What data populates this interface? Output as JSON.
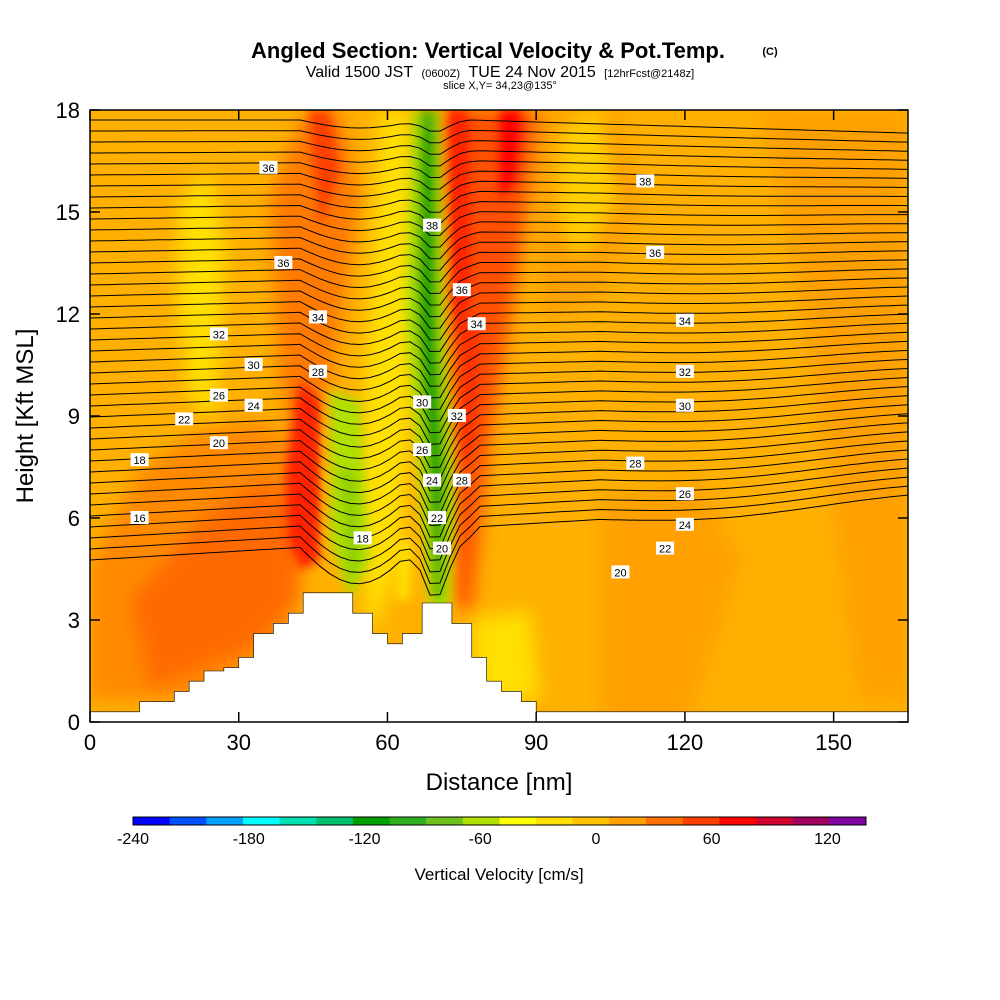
{
  "chart_data": {
    "type": "heatmap",
    "title": "Angled Section: Vertical Velocity & Pot.Temp.",
    "title_units": "(C)",
    "subtitle": {
      "prefix": "Valid 1500 JST",
      "utc": "(0600Z)",
      "date": "TUE 24 Nov 2015",
      "forecast": "[12hrFcst@2148z]"
    },
    "slice_label": "slice X,Y= 34,23@135°",
    "xlabel": "Distance [nm]",
    "ylabel": "Height [Kft MSL]",
    "xlim": [
      0,
      165
    ],
    "ylim": [
      0,
      18
    ],
    "x_ticks": [
      0,
      30,
      60,
      90,
      120,
      150
    ],
    "y_ticks": [
      0,
      3,
      6,
      9,
      12,
      15,
      18
    ],
    "colorbar": {
      "label": "Vertical Velocity [cm/s]",
      "min": -240,
      "max": 140,
      "step": 20,
      "tick_values": [
        -240,
        -180,
        -120,
        -60,
        0,
        60,
        120
      ],
      "colors": [
        "#0000ff",
        "#0050ff",
        "#00a0ff",
        "#00ffff",
        "#00e0b0",
        "#00c070",
        "#00a000",
        "#30b020",
        "#70c020",
        "#b0e000",
        "#ffff00",
        "#ffe000",
        "#ffc000",
        "#ffa000",
        "#ff7000",
        "#ff4000",
        "#ff0000",
        "#d00030",
        "#a00060",
        "#8000a0"
      ]
    },
    "terrain_kft": {
      "x": [
        0,
        10,
        17,
        20,
        23,
        27,
        30,
        33,
        37,
        40,
        43,
        47,
        50,
        53,
        57,
        60,
        63,
        67,
        70,
        73,
        77,
        80,
        83,
        87,
        90,
        165
      ],
      "y": [
        0.3,
        0.6,
        0.9,
        1.2,
        1.5,
        1.6,
        1.9,
        2.6,
        2.9,
        3.2,
        3.8,
        3.8,
        3.8,
        3.2,
        2.6,
        2.3,
        2.6,
        3.5,
        3.5,
        2.9,
        1.9,
        1.2,
        0.9,
        0.6,
        0.3,
        0.3
      ]
    },
    "contour_labels": [
      {
        "text": "36",
        "x": 36,
        "y": 16.3
      },
      {
        "text": "38",
        "x": 112,
        "y": 15.9
      },
      {
        "text": "38",
        "x": 69,
        "y": 14.6
      },
      {
        "text": "36",
        "x": 39,
        "y": 13.5
      },
      {
        "text": "36",
        "x": 114,
        "y": 13.8
      },
      {
        "text": "36",
        "x": 75,
        "y": 12.7
      },
      {
        "text": "34",
        "x": 46,
        "y": 11.9
      },
      {
        "text": "34",
        "x": 78,
        "y": 11.7
      },
      {
        "text": "34",
        "x": 120,
        "y": 11.8
      },
      {
        "text": "32",
        "x": 26,
        "y": 11.4
      },
      {
        "text": "30",
        "x": 33,
        "y": 10.5
      },
      {
        "text": "28",
        "x": 46,
        "y": 10.3
      },
      {
        "text": "32",
        "x": 120,
        "y": 10.3
      },
      {
        "text": "26",
        "x": 26,
        "y": 9.6
      },
      {
        "text": "24",
        "x": 33,
        "y": 9.3
      },
      {
        "text": "30",
        "x": 67,
        "y": 9.4
      },
      {
        "text": "32",
        "x": 74,
        "y": 9.0
      },
      {
        "text": "30",
        "x": 120,
        "y": 9.3
      },
      {
        "text": "22",
        "x": 19,
        "y": 8.9
      },
      {
        "text": "20",
        "x": 26,
        "y": 8.2
      },
      {
        "text": "26",
        "x": 67,
        "y": 8.0
      },
      {
        "text": "28",
        "x": 110,
        "y": 7.6
      },
      {
        "text": "18",
        "x": 10,
        "y": 7.7
      },
      {
        "text": "24",
        "x": 69,
        "y": 7.1
      },
      {
        "text": "28",
        "x": 75,
        "y": 7.1
      },
      {
        "text": "26",
        "x": 120,
        "y": 6.7
      },
      {
        "text": "16",
        "x": 10,
        "y": 6.0
      },
      {
        "text": "22",
        "x": 70,
        "y": 6.0
      },
      {
        "text": "24",
        "x": 120,
        "y": 5.8
      },
      {
        "text": "18",
        "x": 55,
        "y": 5.4
      },
      {
        "text": "20",
        "x": 71,
        "y": 5.1
      },
      {
        "text": "22",
        "x": 116,
        "y": 5.1
      },
      {
        "text": "20",
        "x": 107,
        "y": 4.4
      }
    ]
  }
}
